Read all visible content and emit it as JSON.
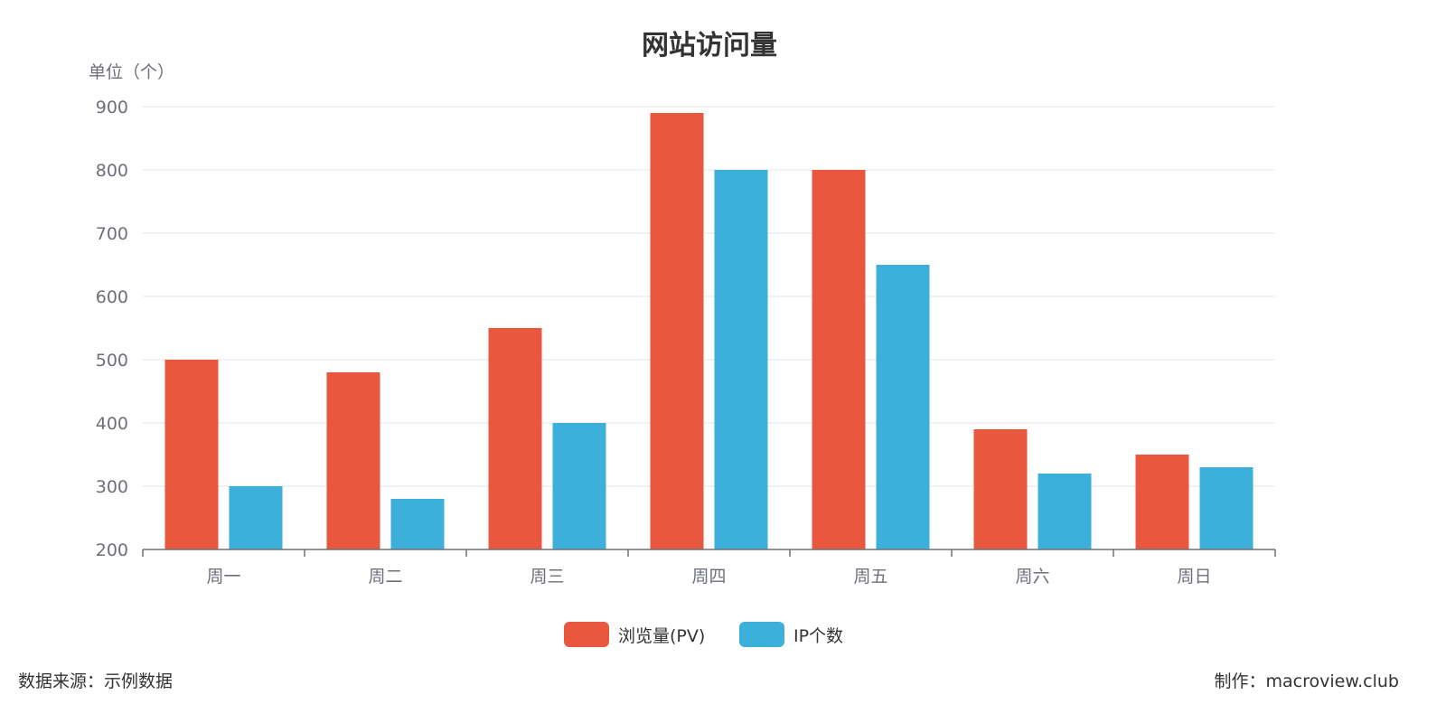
{
  "chart_data": {
    "type": "bar",
    "title": "网站访问量",
    "ylabel": "单位（个）",
    "xlabel": "",
    "categories": [
      "周一",
      "周二",
      "周三",
      "周四",
      "周五",
      "周六",
      "周日"
    ],
    "series": [
      {
        "name": "浏览量(PV)",
        "color": "#e8573e",
        "values": [
          500,
          480,
          550,
          890,
          800,
          390,
          350
        ]
      },
      {
        "name": "IP个数",
        "color": "#3cafda",
        "values": [
          300,
          280,
          400,
          800,
          650,
          320,
          330
        ]
      }
    ],
    "ylim": [
      200,
      900
    ],
    "yticks": [
      200,
      300,
      400,
      500,
      600,
      700,
      800,
      900
    ],
    "grid": true,
    "legend": "bottom-center"
  },
  "footer": {
    "source": "数据来源：示例数据",
    "credit": "制作：macroview.club"
  }
}
